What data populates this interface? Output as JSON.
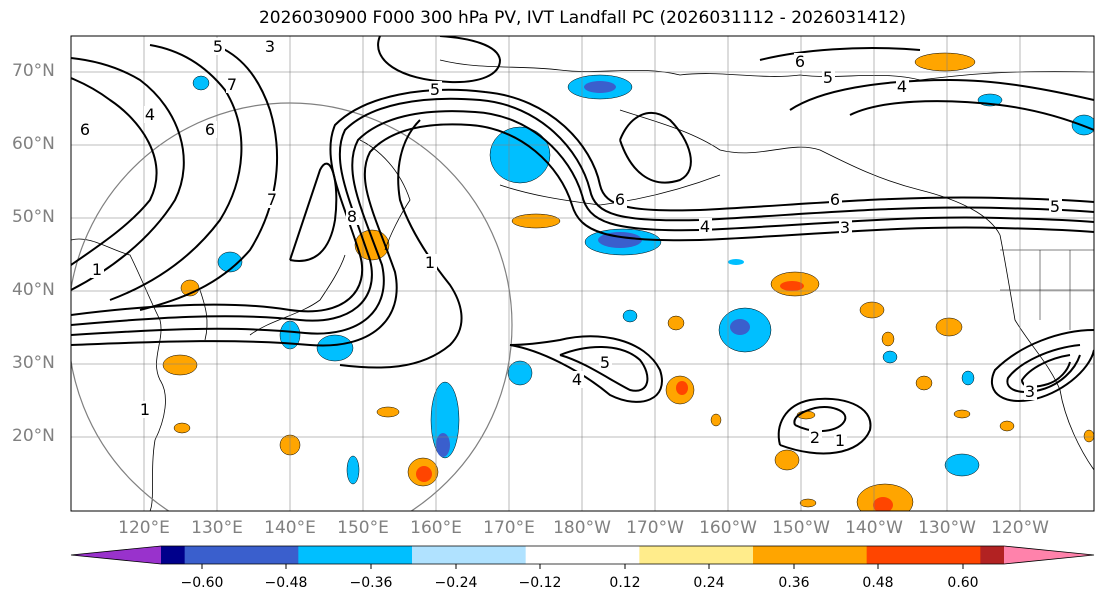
{
  "title": "2026030900 F000 300 hPa PV, IVT Landfall PC (2026031112 - 2026031412)",
  "lat_labels": [
    "70°N",
    "60°N",
    "50°N",
    "40°N",
    "30°N",
    "20°N"
  ],
  "lon_labels": [
    "120°E",
    "130°E",
    "140°E",
    "150°E",
    "160°E",
    "170°E",
    "180°W",
    "170°W",
    "160°W",
    "150°W",
    "140°W",
    "130°W",
    "120°W"
  ],
  "colorbar": {
    "tick_labels": [
      "−0.60",
      "−0.48",
      "−0.36",
      "−0.24",
      "−0.12",
      "0.12",
      "0.24",
      "0.36",
      "0.48",
      "0.60"
    ],
    "colors": [
      "#9932cc",
      "#00008b",
      "#3a5fcd",
      "#00bfff",
      "#b0e2ff",
      "#ffffff",
      "#ffec8b",
      "#ffa500",
      "#ff4500",
      "#b22222",
      "#ff82ab"
    ]
  },
  "contour_labels": [
    "1",
    "1",
    "1",
    "1",
    "2",
    "3",
    "3",
    "3",
    "4",
    "4",
    "4",
    "4",
    "5",
    "5",
    "5",
    "5",
    "5",
    "6",
    "6",
    "6",
    "6",
    "6",
    "7",
    "7",
    "8"
  ],
  "shading_colors": {
    "neg_light": "#b0e2ff",
    "neg": "#00bfff",
    "neg_strong": "#3a5fcd",
    "pos_light": "#ffec8b",
    "pos": "#ffa500",
    "pos_strong": "#ff4500"
  }
}
